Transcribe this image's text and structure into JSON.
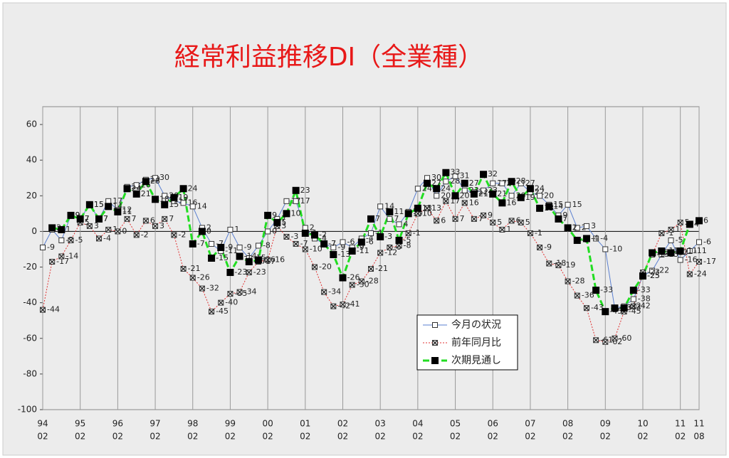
{
  "chart_data": {
    "type": "line",
    "title": "経常利益推移DI（全業種）",
    "categories": [
      {
        "year": "94",
        "month": "02"
      },
      null,
      null,
      null,
      {
        "year": "95",
        "month": "02"
      },
      null,
      null,
      null,
      {
        "year": "96",
        "month": "02"
      },
      null,
      null,
      null,
      {
        "year": "97",
        "month": "02"
      },
      null,
      null,
      null,
      {
        "year": "98",
        "month": "02"
      },
      null,
      null,
      null,
      {
        "year": "99",
        "month": "02"
      },
      null,
      null,
      null,
      {
        "year": "00",
        "month": "02"
      },
      null,
      null,
      null,
      {
        "year": "01",
        "month": "02"
      },
      null,
      null,
      null,
      {
        "year": "02",
        "month": "02"
      },
      null,
      null,
      null,
      {
        "year": "03",
        "month": "02"
      },
      null,
      null,
      null,
      {
        "year": "04",
        "month": "02"
      },
      null,
      null,
      null,
      {
        "year": "05",
        "month": "02"
      },
      null,
      null,
      null,
      {
        "year": "06",
        "month": "02"
      },
      null,
      null,
      null,
      {
        "year": "07",
        "month": "02"
      },
      null,
      null,
      null,
      {
        "year": "08",
        "month": "02"
      },
      null,
      null,
      null,
      {
        "year": "09",
        "month": "02"
      },
      null,
      null,
      null,
      {
        "year": "10",
        "month": "02"
      },
      null,
      null,
      null,
      {
        "year": "11",
        "month": "02"
      },
      null,
      {
        "year": "11",
        "month": "08"
      }
    ],
    "series": [
      {
        "name": "今月の状況",
        "color": "#5a7fd0",
        "marker": "open",
        "values": [
          -9,
          1,
          -5,
          9,
          7,
          15,
          7,
          17,
          12,
          25,
          26,
          29,
          30,
          20,
          17,
          16,
          14,
          2,
          -7,
          -11,
          1,
          -9,
          -15,
          -8,
          0,
          7,
          17,
          17,
          2,
          -4,
          -7,
          -9,
          -6,
          -9,
          -4,
          -1,
          14,
          7,
          4,
          11,
          24,
          30,
          20,
          28,
          31,
          23,
          22,
          23,
          27,
          27,
          20,
          27,
          22,
          20,
          15,
          9,
          15,
          2,
          3,
          -4,
          -10,
          -43,
          -42,
          -38,
          -25,
          -22,
          -13,
          -5,
          -16,
          -11,
          -6
        ]
      },
      {
        "name": "前年同月比",
        "color": "#e03030",
        "marker": "cross",
        "values": [
          -44,
          -17,
          -14,
          -5,
          5,
          3,
          -4,
          1,
          0,
          7,
          -2,
          6,
          3,
          7,
          -2,
          -21,
          -26,
          -32,
          -45,
          -40,
          -35,
          -34,
          -23,
          -17,
          -16,
          3,
          -3,
          -7,
          -10,
          -20,
          -34,
          -42,
          -41,
          -30,
          -28,
          -21,
          -12,
          -9,
          -8,
          -1,
          10,
          13,
          6,
          17,
          7,
          16,
          7,
          9,
          5,
          1,
          6,
          5,
          -1,
          -9,
          -18,
          -19,
          -28,
          -36,
          -43,
          -61,
          -62,
          -60,
          -45,
          -42,
          -23,
          -13,
          -1,
          1,
          5,
          -24,
          -17
        ]
      },
      {
        "name": "次期見通し",
        "color": "#22dd22",
        "marker": "filled",
        "values": [
          null,
          2,
          1,
          9,
          7,
          15,
          7,
          14,
          11,
          24,
          21,
          28,
          18,
          15,
          19,
          24,
          -7,
          0,
          -15,
          -9,
          -23,
          -14,
          -17,
          -16,
          9,
          5,
          10,
          23,
          -1,
          -2,
          -7,
          -13,
          -26,
          -11,
          -6,
          7,
          -3,
          11,
          -5,
          10,
          13,
          27,
          24,
          33,
          20,
          27,
          21,
          32,
          21,
          16,
          28,
          19,
          24,
          13,
          14,
          7,
          2,
          -5,
          -4,
          -33,
          -45,
          -43,
          -43,
          -33,
          -25,
          -12,
          -11,
          -12,
          -11,
          4,
          6
        ]
      }
    ],
    "ylim": [
      -100,
      70
    ],
    "yticks": [
      60,
      40,
      20,
      0,
      -20,
      -40,
      -60,
      -80,
      -100
    ]
  }
}
